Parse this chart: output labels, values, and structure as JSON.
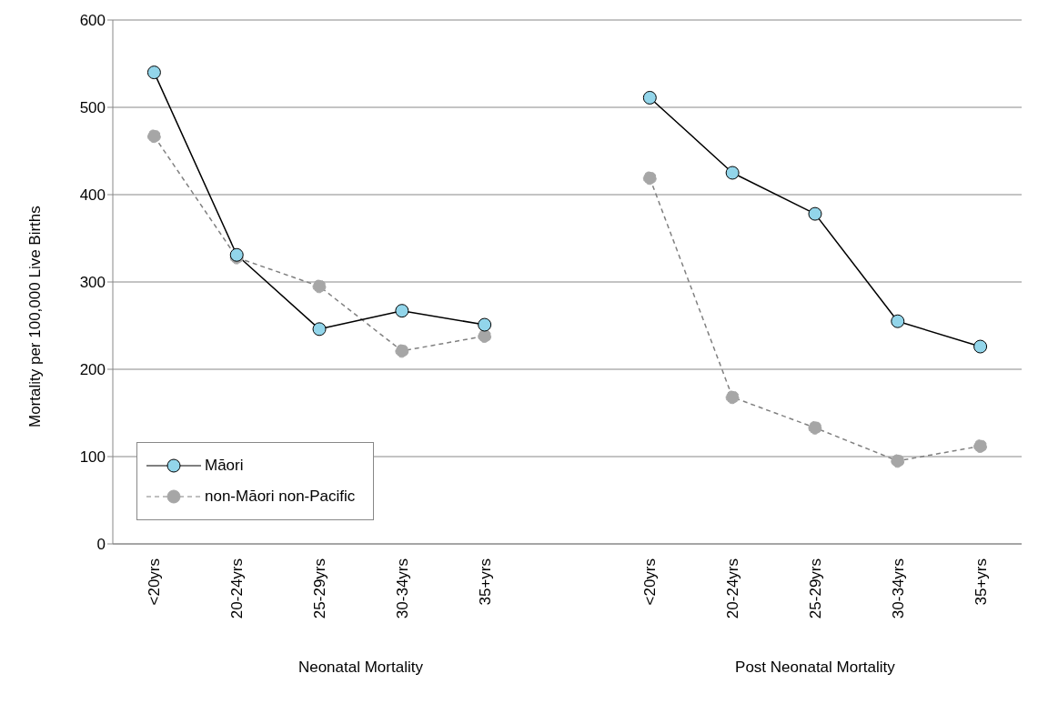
{
  "chart_data": {
    "type": "line",
    "ylabel": "Mortality per 100,000  Live Births",
    "categories": [
      "<20yrs",
      "20-24yrs",
      "25-29yrs",
      "30-34yrs",
      "35+yrs",
      null,
      "<20yrs",
      "20-24yrs",
      "25-29yrs",
      "30-34yrs",
      "35+yrs"
    ],
    "series": [
      {
        "name": "Māori",
        "color": "#92d5ea",
        "line_style": "solid",
        "values": [
          540,
          331,
          246,
          267,
          251,
          null,
          511,
          425,
          378,
          255,
          226
        ]
      },
      {
        "name": "non-Māori non-Pacific",
        "color": "#a6a6a6",
        "line_style": "dashed",
        "values": [
          467,
          328,
          295,
          221,
          238,
          null,
          419,
          168,
          133,
          95,
          112
        ]
      }
    ],
    "annotations": [
      "Neonatal Mortality",
      "Post Neonatal Mortality"
    ],
    "ylim": [
      0,
      600
    ],
    "yticks": [
      0,
      100,
      200,
      300,
      400,
      500,
      600
    ],
    "grid": "y",
    "legend": "bottom left",
    "marker": "circle"
  }
}
